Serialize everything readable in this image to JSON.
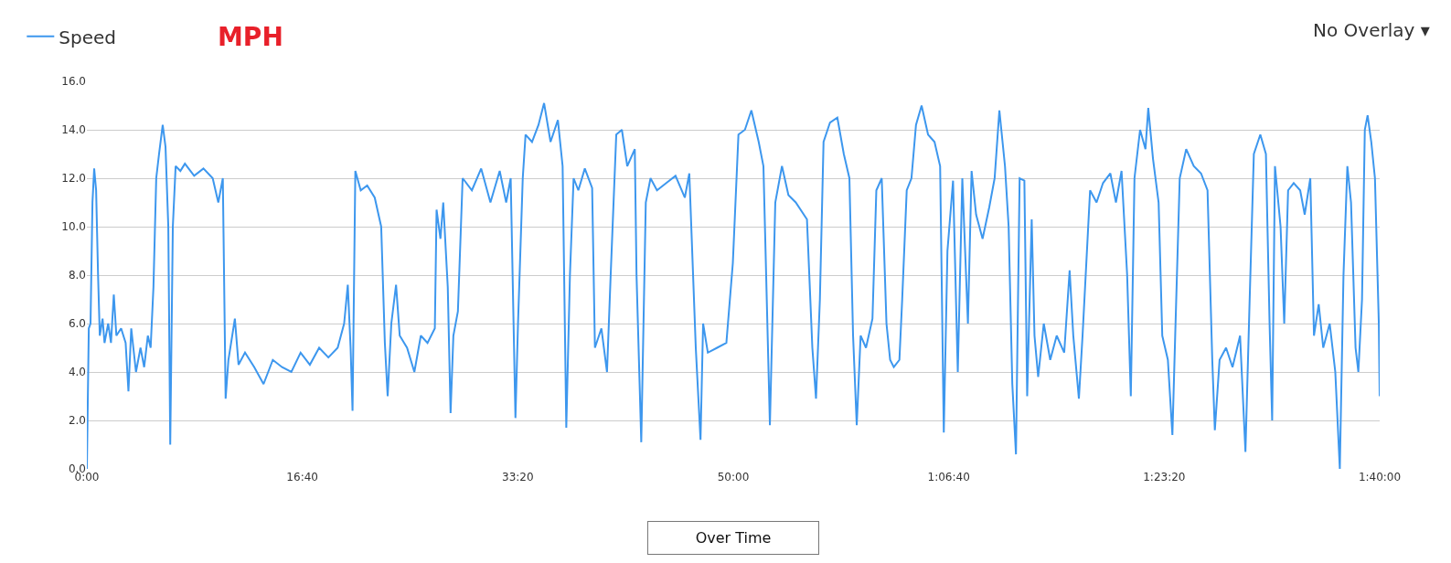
{
  "chart_data": {
    "type": "line",
    "x": [
      0,
      9,
      17,
      26,
      34,
      43,
      52,
      60,
      73,
      82,
      99,
      112,
      125,
      137,
      159,
      180,
      193,
      206,
      228,
      249,
      266,
      283,
      296,
      309,
      322,
      335,
      352,
      365,
      378,
      387,
      399,
      412,
      434,
      455,
      498,
      541,
      584,
      610,
      631,
      644,
      657,
      687,
      704,
      734,
      777,
      820,
      863,
      906,
      949,
      992,
      1035,
      1078,
      1121,
      1164,
      1194,
      1211,
      1224,
      1233,
      1246,
      1271,
      1301,
      1336,
      1366,
      1383,
      1396,
      1413,
      1435,
      1452,
      1486,
      1520,
      1550,
      1581,
      1615,
      1623,
      1641,
      1654,
      1675,
      1688,
      1701,
      1722,
      1744,
      1787,
      1830,
      1873,
      1916,
      1946,
      1967,
      1989,
      2001,
      2023,
      2036,
      2066,
      2096,
      2122,
      2152,
      2186,
      2208,
      2225,
      2242,
      2259,
      2281,
      2311,
      2345,
      2358,
      2388,
      2414,
      2431,
      2457,
      2483,
      2508,
      2543,
      2551,
      2573,
      2594,
      2616,
      2646,
      2689,
      2732,
      2775,
      2796,
      2826,
      2848,
      2860,
      2882,
      2925,
      2968,
      2998,
      3024,
      3054,
      3084,
      3118,
      3140,
      3170,
      3195,
      3226,
      3256,
      3290,
      3342,
      3367,
      3384,
      3402,
      3419,
      3449,
      3483,
      3513,
      3539,
      3556,
      3573,
      3591,
      3616,
      3646,
      3664,
      3689,
      3711,
      3728,
      3745,
      3771,
      3784,
      3805,
      3827,
      3848,
      3874,
      3904,
      3934,
      3960,
      3977,
      3994,
      4020,
      4042,
      4063,
      4089,
      4106,
      4127,
      4157,
      4188,
      4213,
      4235,
      4261,
      4278,
      4295,
      4312,
      4329,
      4351,
      4364,
      4385,
      4398,
      4415,
      4441,
      4471,
      4501,
      4536,
      4561,
      4578,
      4604,
      4621,
      4656,
      4686,
      4716,
      4750,
      4776,
      4802,
      4828,
      4845,
      4862,
      4888,
      4913,
      4926,
      4948,
      4974,
      4991,
      5017,
      5038,
      5051,
      5072,
      5102,
      5137,
      5171,
      5201,
      5223,
      5235,
      5257,
      5287,
      5317,
      5352,
      5377,
      5395,
      5416,
      5446,
      5472,
      5489,
      5501,
      5514,
      5540,
      5557,
      5575,
      5601,
      5631,
      5652,
      5678,
      5695,
      5717,
      5738,
      5768,
      5794,
      5815,
      5832,
      5850,
      5867,
      5888,
      5901,
      5918,
      5931,
      5944,
      5961,
      5978,
      5996,
      6000
    ],
    "series": [
      {
        "name": "Speed",
        "color": "#3d97ee",
        "values": [
          0,
          5.8,
          6.0,
          11,
          12.4,
          11.5,
          8,
          5.5,
          6.2,
          5.2,
          6,
          5.2,
          7.2,
          5.5,
          5.8,
          5.2,
          3.2,
          5.8,
          4.0,
          5.0,
          4.2,
          5.5,
          5.0,
          7.5,
          12,
          13,
          14.2,
          13.3,
          10,
          1.0,
          10,
          12.5,
          12.3,
          12.6,
          12.1,
          12.4,
          12.0,
          11.0,
          12.0,
          2.9,
          4.5,
          6.2,
          4.3,
          4.8,
          4.2,
          3.5,
          4.5,
          4.2,
          4.0,
          4.8,
          4.3,
          5.0,
          4.6,
          5.0,
          6.0,
          7.6,
          5.0,
          2.4,
          12.3,
          11.5,
          11.7,
          11.2,
          10.0,
          5.2,
          3.0,
          6.0,
          7.6,
          5.5,
          5.0,
          4.0,
          5.5,
          5.2,
          5.8,
          10.7,
          9.5,
          11,
          7.5,
          2.3,
          5.5,
          6.5,
          12.0,
          11.5,
          12.4,
          11.0,
          12.3,
          11.0,
          12.0,
          2.1,
          6.0,
          12.0,
          13.8,
          13.5,
          14.2,
          15.1,
          13.5,
          14.4,
          12.5,
          1.7,
          8,
          12.0,
          11.5,
          12.4,
          11.6,
          5.0,
          5.8,
          4.0,
          8.0,
          13.8,
          14.0,
          12.5,
          13.2,
          8,
          1.1,
          11,
          12.0,
          11.5,
          11.8,
          12.1,
          11.2,
          12.2,
          5.0,
          1.2,
          6.0,
          4.8,
          5.0,
          5.2,
          8.5,
          13.8,
          14.0,
          14.8,
          13.5,
          12.5,
          1.8,
          11.0,
          12.5,
          11.3,
          11.0,
          10.3,
          5.0,
          2.9,
          7,
          13.5,
          14.3,
          14.5,
          13.0,
          12.0,
          5.5,
          1.8,
          5.5,
          5.0,
          6.2,
          11.5,
          12.0,
          6.0,
          4.5,
          4.2,
          4.5,
          7,
          11.5,
          12.0,
          14.2,
          15.0,
          13.8,
          13.5,
          12.5,
          1.5,
          9,
          11.9,
          4.0,
          12.0,
          6.0,
          12.3,
          10.5,
          9.5,
          10.8,
          12.0,
          14.8,
          12.5,
          10,
          3.5,
          0.6,
          12,
          11.9,
          3.0,
          10.3,
          5.5,
          3.8,
          6.0,
          4.5,
          5.5,
          4.8,
          8.2,
          5.5,
          2.9,
          5.5,
          11.5,
          11.0,
          11.8,
          12.2,
          11.0,
          12.3,
          8,
          3.0,
          12.0,
          14.0,
          13.2,
          14.9,
          12.8,
          11,
          5.5,
          4.5,
          1.4,
          5.5,
          12.0,
          13.2,
          12.5,
          12.2,
          11.5,
          4.5,
          1.6,
          4.5,
          5.0,
          4.2,
          5.5,
          0.7,
          6.5,
          13.0,
          13.8,
          13.0,
          6.0,
          2.0,
          12.5,
          10.0,
          6.0,
          11.5,
          11.8,
          11.5,
          10.5,
          12.0,
          5.5,
          6.8,
          5.0,
          6.0,
          4.0,
          0.0,
          8,
          12.5,
          11.0,
          5.0,
          4.0,
          7,
          14.0,
          14.6,
          13.5,
          12.0,
          6,
          3.0
        ]
      }
    ],
    "xlim": [
      0,
      6000
    ],
    "xticks": [
      {
        "value": 0,
        "label": "0:00"
      },
      {
        "value": 1000,
        "label": "16:40"
      },
      {
        "value": 2000,
        "label": "33:20"
      },
      {
        "value": 3000,
        "label": "50:00"
      },
      {
        "value": 4000,
        "label": "1:06:40"
      },
      {
        "value": 5000,
        "label": "1:23:20"
      },
      {
        "value": 6000,
        "label": "1:40:00"
      }
    ],
    "ylim": [
      0,
      16
    ],
    "yticks": [
      {
        "value": 0,
        "label": "0.0"
      },
      {
        "value": 2,
        "label": "2.0"
      },
      {
        "value": 4,
        "label": "4.0"
      },
      {
        "value": 6,
        "label": "6.0"
      },
      {
        "value": 8,
        "label": "8.0"
      },
      {
        "value": 10,
        "label": "10.0"
      },
      {
        "value": 12,
        "label": "12.0"
      },
      {
        "value": 14,
        "label": "14.0"
      },
      {
        "value": 16,
        "label": "16.0"
      }
    ],
    "grid": "y",
    "legend": "top left",
    "marker": "none",
    "line_style": "solid",
    "annotations": [
      "MPH",
      "No Overlay ▾",
      "Over Time"
    ]
  }
}
